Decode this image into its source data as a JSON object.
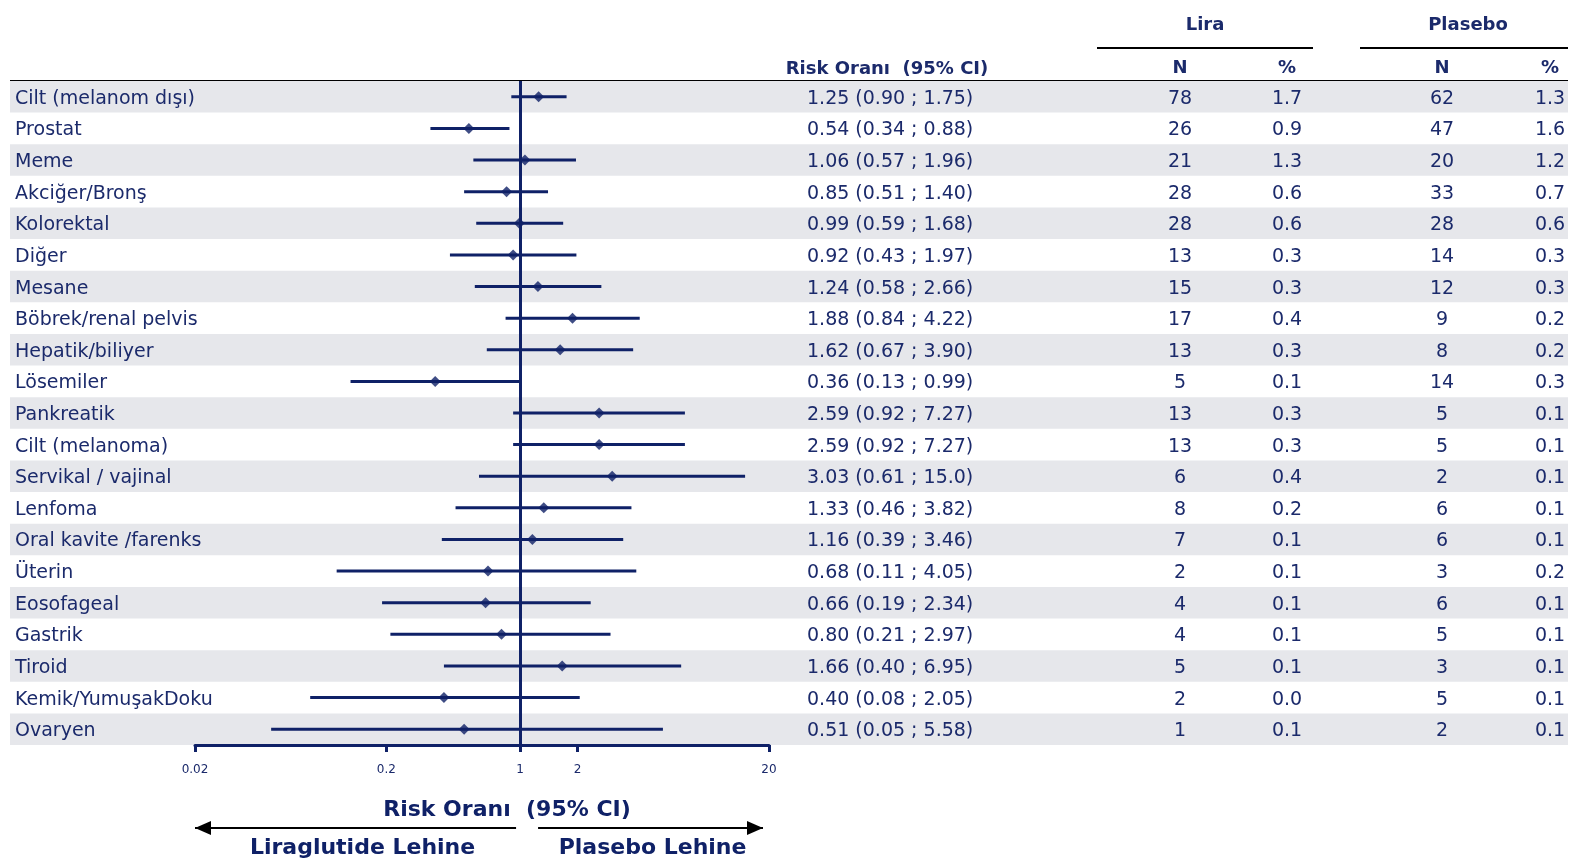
{
  "chart_data": {
    "type": "scatter",
    "orientation": "horizontal",
    "xlabel": "Risk Oranı  (95% CI)",
    "log": "x",
    "marker": "diamond",
    "categories": [
      "Cilt (melanom dışı)",
      "Prostat",
      "Meme",
      "Akciğer/Bronş",
      "Kolorektal",
      "Diğer",
      "Mesane",
      "Böbrek/renal pelvis",
      "Hepatik/biliyer",
      "Lösemiler",
      "Pankreatik",
      "Cilt (melanoma)",
      "Servikal / vajinal",
      "Lenfoma",
      "Oral kavite /farenks",
      "Üterin",
      "Eosofageal",
      "Gastrik",
      "Tiroid",
      "Kemik/YumuşakDoku",
      "Ovaryen"
    ],
    "series": [
      {
        "color": "#0f2167",
        "values": [
          1.25,
          0.54,
          1.06,
          0.85,
          0.99,
          0.92,
          1.24,
          1.88,
          1.62,
          0.36,
          2.59,
          2.59,
          3.03,
          1.33,
          1.16,
          0.68,
          0.66,
          0.8,
          1.66,
          0.4,
          0.51
        ],
        "errors": [
          [
            0.9,
            1.75
          ],
          [
            0.34,
            0.88
          ],
          [
            0.57,
            1.96
          ],
          [
            0.51,
            1.4
          ],
          [
            0.59,
            1.68
          ],
          [
            0.43,
            1.97
          ],
          [
            0.58,
            2.66
          ],
          [
            0.84,
            4.22
          ],
          [
            0.67,
            3.9
          ],
          [
            0.13,
            0.99
          ],
          [
            0.92,
            7.27
          ],
          [
            0.92,
            7.27
          ],
          [
            0.61,
            15.0
          ],
          [
            0.46,
            3.82
          ],
          [
            0.39,
            3.46
          ],
          [
            0.11,
            4.05
          ],
          [
            0.19,
            2.34
          ],
          [
            0.21,
            2.97
          ],
          [
            0.4,
            6.95
          ],
          [
            0.08,
            2.05
          ],
          [
            0.05,
            5.58
          ]
        ],
        "value_labels": [
          "1.25 (0.90 ; 1.75)",
          "0.54 (0.34 ; 0.88)",
          "1.06 (0.57 ; 1.96)",
          "0.85 (0.51 ; 1.40)",
          "0.99 (0.59 ; 1.68)",
          "0.92 (0.43 ; 1.97)",
          "1.24 (0.58 ; 2.66)",
          "1.88 (0.84 ; 4.22)",
          "1.62 (0.67 ; 3.90)",
          "0.36 (0.13 ; 0.99)",
          "2.59 (0.92 ; 7.27)",
          "2.59 (0.92 ; 7.27)",
          "3.03 (0.61 ; 15.0)",
          "1.33 (0.46 ; 3.82)",
          "1.16 (0.39 ; 3.46)",
          "0.68 (0.11 ; 4.05)",
          "0.66 (0.19 ; 2.34)",
          "0.80 (0.21 ; 2.97)",
          "1.66 (0.40 ; 6.95)",
          "0.40 (0.08 ; 2.05)",
          "0.51 (0.05 ; 5.58)"
        ]
      }
    ],
    "xlim": [
      0.02,
      20
    ],
    "xticks": [
      0.02,
      0.2,
      1,
      2,
      20
    ],
    "ref_lines": [
      {
        "axis": "x",
        "value": 1,
        "color": "#0f2167"
      }
    ],
    "annotations": [
      "Risk Oranı  (95% CI)",
      "Lira",
      "Plasebo",
      "N",
      "%",
      "N",
      "%",
      "78",
      "1.7",
      "62",
      "1.3",
      "26",
      "0.9",
      "47",
      "1.6",
      "21",
      "1.3",
      "20",
      "1.2",
      "28",
      "0.6",
      "33",
      "0.7",
      "28",
      "0.6",
      "28",
      "0.6",
      "13",
      "0.3",
      "14",
      "0.3",
      "15",
      "0.3",
      "12",
      "0.3",
      "17",
      "0.4",
      "9",
      "0.2",
      "13",
      "0.3",
      "8",
      "0.2",
      "5",
      "0.1",
      "14",
      "0.3",
      "13",
      "0.3",
      "5",
      "0.1",
      "13",
      "0.3",
      "5",
      "0.1",
      "6",
      "0.4",
      "2",
      "0.1",
      "8",
      "0.2",
      "6",
      "0.1",
      "7",
      "0.1",
      "6",
      "0.1",
      "2",
      "0.1",
      "3",
      "0.2",
      "4",
      "0.1",
      "6",
      "0.1",
      "4",
      "0.1",
      "5",
      "0.1",
      "5",
      "0.1",
      "3",
      "0.1",
      "2",
      "0.0",
      "5",
      "0.1",
      "1",
      "0.1",
      "2",
      "0.1",
      "Liraglutide Lehine",
      "Plasebo Lehine"
    ]
  }
}
